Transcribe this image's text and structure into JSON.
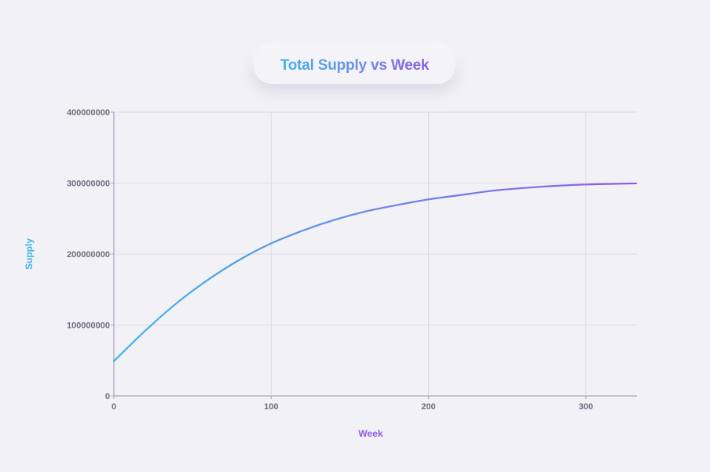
{
  "chart_data": {
    "type": "line",
    "title": "Total Supply vs Week",
    "xlabel": "Week",
    "ylabel": "Supply",
    "xlim": [
      0,
      332
    ],
    "ylim": [
      0,
      400000000
    ],
    "x_ticks": [
      "0",
      "100",
      "200",
      "300"
    ],
    "x_tick_values": [
      0,
      100,
      200,
      300
    ],
    "y_ticks": [
      "0",
      "100000000",
      "200000000",
      "300000000",
      "400000000"
    ],
    "y_tick_values": [
      0,
      100000000,
      200000000,
      300000000,
      400000000
    ],
    "grid": true,
    "series": [
      {
        "x": [
          0,
          20,
          40,
          60,
          80,
          100,
          120,
          140,
          160,
          180,
          200,
          220,
          240,
          260,
          280,
          300,
          320,
          332
        ],
        "values": [
          49000000,
          92000000,
          131000000,
          164000000,
          192000000,
          215000000,
          233000000,
          248000000,
          260000000,
          269000000,
          277000000,
          283000000,
          289000000,
          293000000,
          296000000,
          298000000,
          299000000,
          299500000
        ],
        "color_start": "#3fb6e6",
        "color_end": "#8e5be6"
      }
    ]
  },
  "colors": {
    "background": "#f2f1f6",
    "grid": "#dcdbe5",
    "axis": "#a9a7b8",
    "ylabel": "#3fb6e6",
    "xlabel": "#8e5be6"
  }
}
